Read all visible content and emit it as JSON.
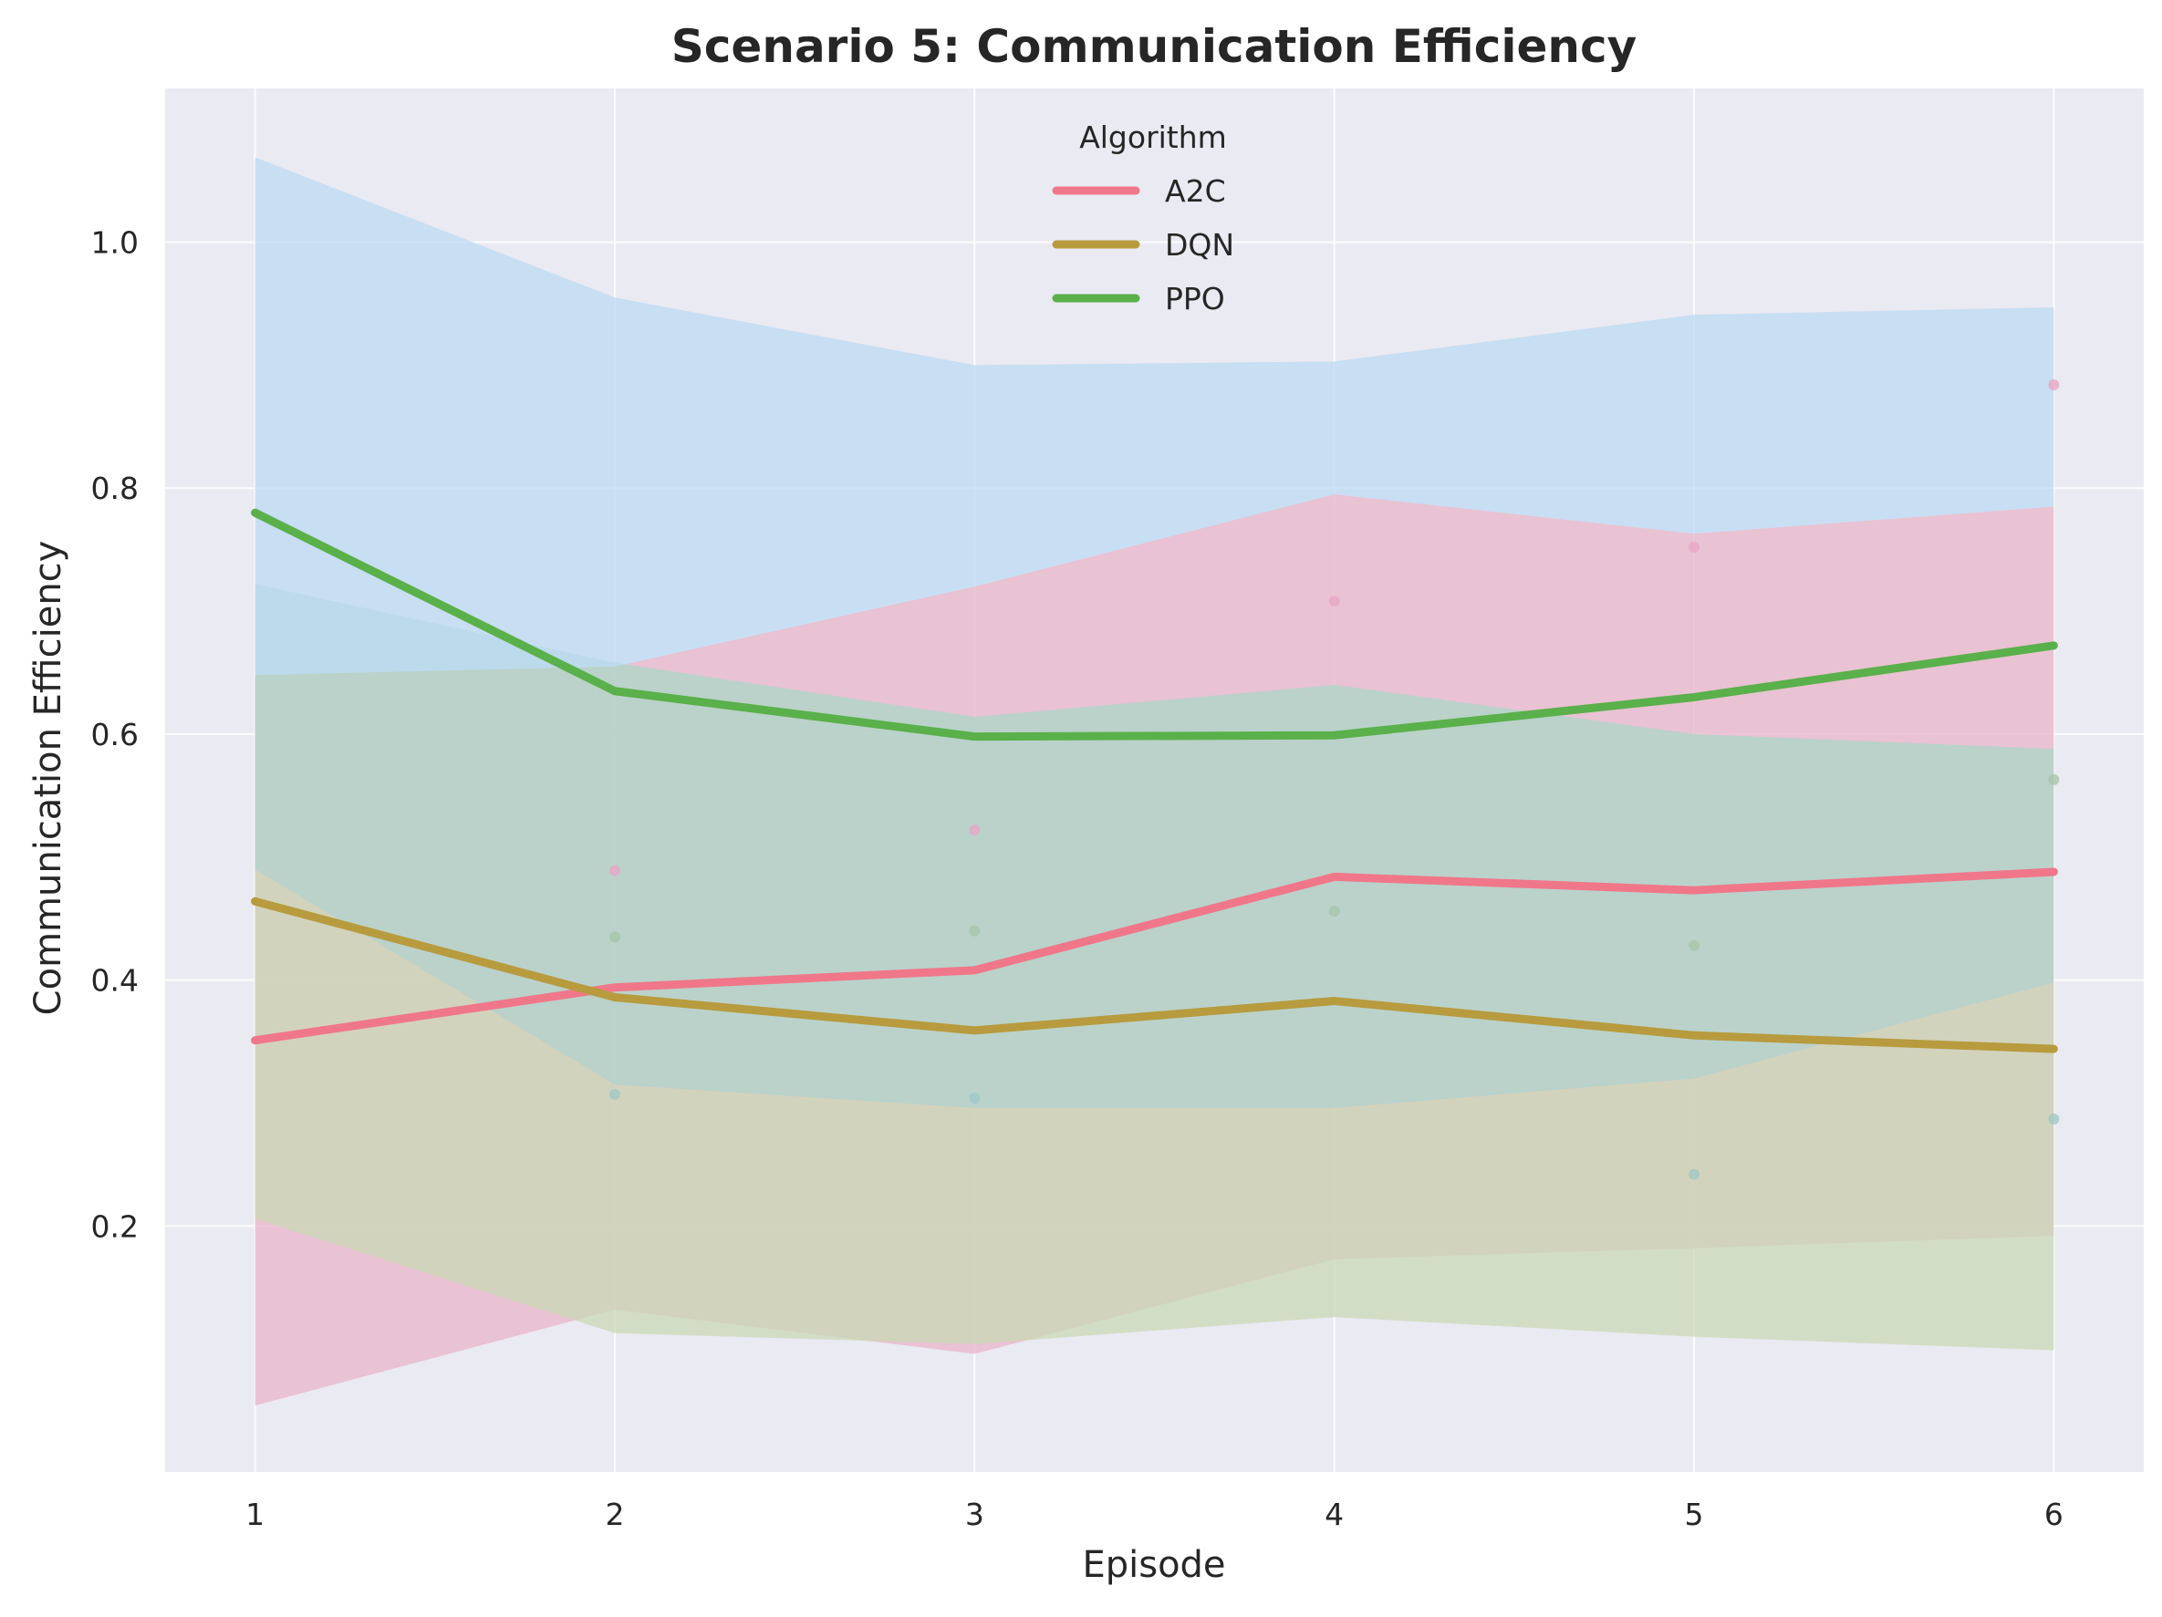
{
  "chart_data": {
    "type": "line",
    "title": "Scenario 5: Communication Efficiency",
    "xlabel": "Episode",
    "ylabel": "Communication Efficiency",
    "x": [
      1,
      2,
      3,
      4,
      5,
      6
    ],
    "xticks": [
      "1",
      "2",
      "3",
      "4",
      "5",
      "6"
    ],
    "yticks": [
      "0.2",
      "0.4",
      "0.6",
      "0.8",
      "1.0"
    ],
    "xlim": [
      0.75,
      6.25
    ],
    "ylim": [
      0.0,
      1.125
    ],
    "grid": true,
    "legend": {
      "title": "Algorithm",
      "position": "upper-center"
    },
    "series": [
      {
        "name": "A2C",
        "color": "#f0778a",
        "values": [
          0.351,
          0.394,
          0.408,
          0.484,
          0.473,
          0.488
        ]
      },
      {
        "name": "DQN",
        "color": "#b89b3e",
        "values": [
          0.464,
          0.386,
          0.359,
          0.383,
          0.355,
          0.344
        ]
      },
      {
        "name": "PPO",
        "color": "#5ab04a",
        "values": [
          0.78,
          0.635,
          0.598,
          0.599,
          0.63,
          0.672
        ]
      }
    ],
    "bands": [
      {
        "color": "#e8b4c8",
        "lower": [
          0.054,
          0.132,
          0.096,
          0.173,
          0.182,
          0.192
        ],
        "upper": [
          0.648,
          0.655,
          0.72,
          0.795,
          0.763,
          0.785
        ]
      },
      {
        "color": "#c9d8b6",
        "lower": [
          0.206,
          0.113,
          0.104,
          0.126,
          0.11,
          0.099
        ],
        "upper": [
          0.49,
          0.315,
          0.296,
          0.296,
          0.32,
          0.398
        ]
      },
      {
        "color": "#a9d7c7",
        "lower": [
          0.49,
          0.315,
          0.296,
          0.296,
          0.32,
          0.398
        ],
        "upper": [
          0.722,
          0.658,
          0.614,
          0.64,
          0.6,
          0.588
        ]
      },
      {
        "color": "#bcd9f3",
        "lower": [
          0.648,
          0.655,
          0.72,
          0.795,
          0.763,
          0.785
        ],
        "upper": [
          1.069,
          0.955,
          0.9,
          0.903,
          0.941,
          0.947
        ]
      }
    ],
    "points": [
      {
        "color": "#e8a6c6",
        "values": [
          [
            2,
            0.489
          ],
          [
            3,
            0.522
          ],
          [
            4,
            0.708
          ],
          [
            5,
            0.752
          ],
          [
            6,
            0.884
          ]
        ]
      },
      {
        "color": "#a8c6a9",
        "values": [
          [
            2,
            0.435
          ],
          [
            3,
            0.44
          ],
          [
            4,
            0.456
          ],
          [
            5,
            0.428
          ],
          [
            6,
            0.563
          ]
        ]
      },
      {
        "color": "#9fc9c6",
        "values": [
          [
            2,
            0.307
          ],
          [
            3,
            0.304
          ],
          [
            5,
            0.242
          ],
          [
            6,
            0.287
          ]
        ]
      }
    ]
  }
}
